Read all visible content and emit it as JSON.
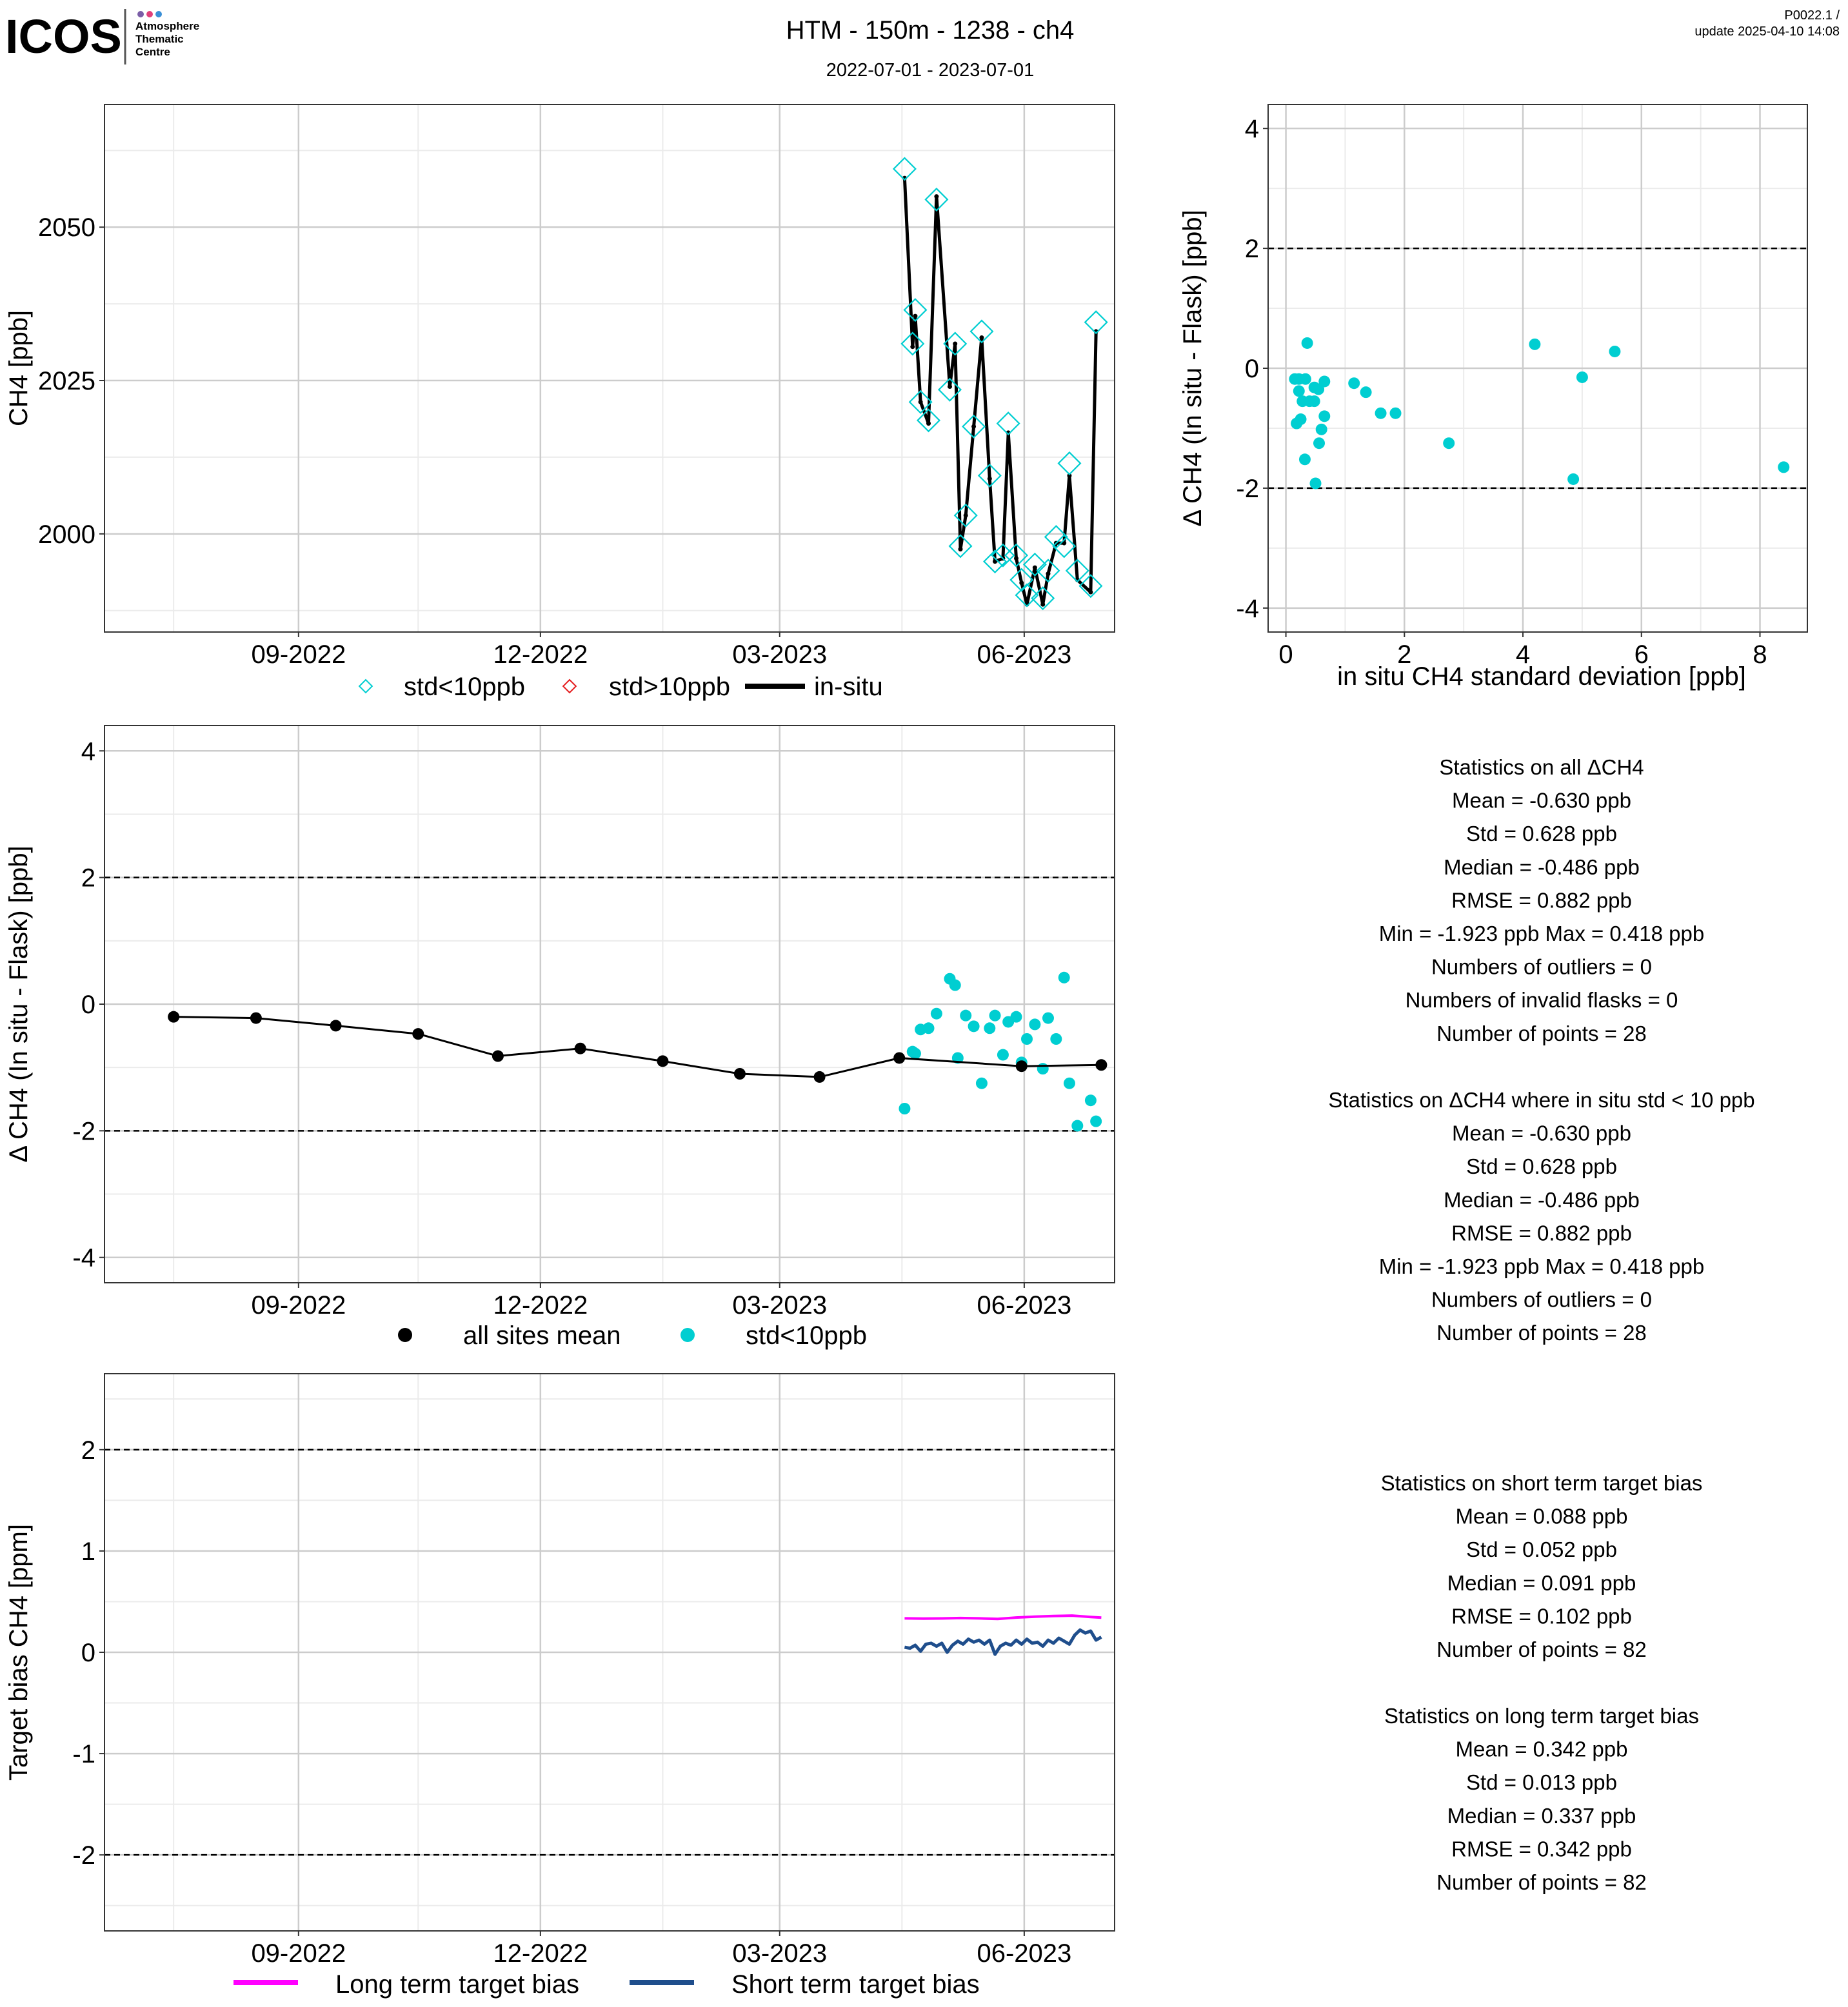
{
  "header": {
    "logo_text": "ICOS",
    "logo_sub": [
      "Atmosphere",
      "Thematic",
      "Centre"
    ],
    "title": "HTM - 150m - 1238 - ch4",
    "subtitle": "2022-07-01 - 2023-07-01",
    "version": "P0022.1 /",
    "update": "update  2025-04-10 14:08"
  },
  "colors": {
    "cyan": "#00CED1",
    "red": "#E41A1C",
    "black": "#000000",
    "magenta": "#FF00FF",
    "navy": "#1F4E8C",
    "grid_major": "#CCCCCC",
    "grid_minor": "#EBEBEB",
    "logo_dots": [
      "#7b5ea7",
      "#e0407a",
      "#3a8fd6"
    ]
  },
  "x_ticks": [
    "09-2022",
    "12-2022",
    "03-2023",
    "06-2023"
  ],
  "chart_data": [
    {
      "id": "timeseries",
      "type": "line",
      "ylabel": "CH4 [ppb]",
      "ylim": [
        1984,
        2070
      ],
      "y_ticks": [
        "2000",
        "2025",
        "2050"
      ],
      "x_ticks": [
        "09-2022",
        "12-2022",
        "03-2023",
        "06-2023"
      ],
      "grid": true,
      "legend": [
        "std<10ppb",
        "std>10ppb",
        "in-situ"
      ],
      "legend_position": "bottom",
      "series": [
        {
          "name": "in-situ",
          "points": [
            [
              "2023-04-17",
              2058.0
            ],
            [
              "2023-04-20",
              2030.5
            ],
            [
              "2023-04-21",
              2035.5
            ],
            [
              "2023-04-23",
              2021.5
            ],
            [
              "2023-04-26",
              2018.0
            ],
            [
              "2023-04-29",
              2055.0
            ],
            [
              "2023-05-04",
              2024.0
            ],
            [
              "2023-05-06",
              2031.0
            ],
            [
              "2023-05-08",
              1997.5
            ],
            [
              "2023-05-10",
              2003.0
            ],
            [
              "2023-05-13",
              2017.5
            ],
            [
              "2023-05-16",
              2032.0
            ],
            [
              "2023-05-19",
              2009.0
            ],
            [
              "2023-05-21",
              1995.5
            ],
            [
              "2023-05-24",
              1996.0
            ],
            [
              "2023-05-26",
              2016.5
            ],
            [
              "2023-05-29",
              1996.0
            ],
            [
              "2023-05-31",
              1992.0
            ],
            [
              "2023-06-02",
              1988.5
            ],
            [
              "2023-06-05",
              1994.5
            ],
            [
              "2023-06-08",
              1988.5
            ],
            [
              "2023-06-10",
              1993.5
            ],
            [
              "2023-06-13",
              1998.5
            ],
            [
              "2023-06-16",
              1998.5
            ],
            [
              "2023-06-18",
              2009.5
            ],
            [
              "2023-06-21",
              1992.5
            ],
            [
              "2023-06-26",
              1990.5
            ],
            [
              "2023-06-28",
              2033.0
            ]
          ]
        },
        {
          "name": "std<10ppb",
          "points": [
            [
              "2023-04-17",
              2059.5
            ],
            [
              "2023-04-20",
              2031.0
            ],
            [
              "2023-04-21",
              2036.5
            ],
            [
              "2023-04-23",
              2021.5
            ],
            [
              "2023-04-26",
              2018.5
            ],
            [
              "2023-04-29",
              2054.5
            ],
            [
              "2023-05-04",
              2023.5
            ],
            [
              "2023-05-06",
              2031.0
            ],
            [
              "2023-05-08",
              1998.0
            ],
            [
              "2023-05-10",
              2003.0
            ],
            [
              "2023-05-13",
              2017.5
            ],
            [
              "2023-05-16",
              2033.0
            ],
            [
              "2023-05-19",
              2009.5
            ],
            [
              "2023-05-21",
              1995.5
            ],
            [
              "2023-05-24",
              1996.5
            ],
            [
              "2023-05-26",
              2018.0
            ],
            [
              "2023-05-29",
              1996.5
            ],
            [
              "2023-05-31",
              1992.5
            ],
            [
              "2023-06-02",
              1990.0
            ],
            [
              "2023-06-05",
              1995.0
            ],
            [
              "2023-06-08",
              1989.5
            ],
            [
              "2023-06-10",
              1994.0
            ],
            [
              "2023-06-13",
              1999.5
            ],
            [
              "2023-06-16",
              1998.0
            ],
            [
              "2023-06-18",
              2011.5
            ],
            [
              "2023-06-21",
              1994.0
            ],
            [
              "2023-06-26",
              1991.5
            ],
            [
              "2023-06-28",
              2034.5
            ]
          ]
        },
        {
          "name": "std>10ppb",
          "points": []
        }
      ]
    },
    {
      "id": "delta_vs_std",
      "type": "scatter",
      "xlabel": "in situ CH4 standard deviation [ppb]",
      "ylabel": "Δ CH4 (In situ - Flask) [ppb]",
      "xlim": [
        -0.3,
        8.8
      ],
      "ylim": [
        -4.4,
        4.4
      ],
      "x_ticks": [
        "0",
        "2",
        "4",
        "6",
        "8"
      ],
      "y_ticks": [
        "4",
        "2",
        "0",
        "-2",
        "-4"
      ],
      "reference_lines": [
        2,
        -2
      ],
      "grid": true,
      "points": [
        [
          0.15,
          -0.18
        ],
        [
          0.22,
          -0.18
        ],
        [
          0.33,
          -0.18
        ],
        [
          0.22,
          -0.38
        ],
        [
          0.48,
          -0.32
        ],
        [
          0.55,
          -0.35
        ],
        [
          0.4,
          -0.55
        ],
        [
          0.28,
          -0.55
        ],
        [
          0.48,
          -0.55
        ],
        [
          0.65,
          -0.22
        ],
        [
          0.36,
          0.42
        ],
        [
          0.25,
          -0.85
        ],
        [
          0.18,
          -0.92
        ],
        [
          0.65,
          -0.8
        ],
        [
          0.6,
          -1.02
        ],
        [
          0.56,
          -1.25
        ],
        [
          0.32,
          -1.52
        ],
        [
          0.5,
          -1.92
        ],
        [
          1.15,
          -0.25
        ],
        [
          1.35,
          -0.4
        ],
        [
          1.6,
          -0.75
        ],
        [
          1.85,
          -0.75
        ],
        [
          2.75,
          -1.25
        ],
        [
          4.2,
          0.4
        ],
        [
          5.55,
          0.28
        ],
        [
          5.0,
          -0.15
        ],
        [
          4.85,
          -1.85
        ],
        [
          8.4,
          -1.65
        ]
      ]
    },
    {
      "id": "delta_timeseries",
      "type": "scatter",
      "ylabel": "Δ CH4 (In situ - Flask) [ppb]",
      "ylim": [
        -4.4,
        4.4
      ],
      "y_ticks": [
        "4",
        "2",
        "0",
        "-2",
        "-4"
      ],
      "x_ticks": [
        "09-2022",
        "12-2022",
        "03-2023",
        "06-2023"
      ],
      "reference_lines": [
        2,
        -2
      ],
      "grid": true,
      "legend": [
        "all sites mean",
        "std<10ppb"
      ],
      "legend_position": "bottom",
      "series": [
        {
          "name": "all sites mean",
          "points": [
            [
              "2022-07-16",
              -0.2
            ],
            [
              "2022-08-16",
              -0.22
            ],
            [
              "2022-09-15",
              -0.34
            ],
            [
              "2022-10-16",
              -0.47
            ],
            [
              "2022-11-15",
              -0.82
            ],
            [
              "2022-12-16",
              -0.7
            ],
            [
              "2023-01-16",
              -0.9
            ],
            [
              "2023-02-14",
              -1.1
            ],
            [
              "2023-03-16",
              -1.15
            ],
            [
              "2023-04-15",
              -0.85
            ],
            [
              "2023-05-31",
              -0.98
            ],
            [
              "2023-06-30",
              -0.96
            ]
          ]
        },
        {
          "name": "std<10ppb",
          "points": [
            [
              "2023-04-17",
              -1.65
            ],
            [
              "2023-04-20",
              -0.75
            ],
            [
              "2023-04-21",
              -0.78
            ],
            [
              "2023-04-23",
              -0.4
            ],
            [
              "2023-04-26",
              -0.38
            ],
            [
              "2023-04-29",
              -0.15
            ],
            [
              "2023-05-04",
              0.4
            ],
            [
              "2023-05-06",
              0.3
            ],
            [
              "2023-05-07",
              -0.85
            ],
            [
              "2023-05-10",
              -0.18
            ],
            [
              "2023-05-13",
              -0.35
            ],
            [
              "2023-05-16",
              -1.25
            ],
            [
              "2023-05-19",
              -0.38
            ],
            [
              "2023-05-21",
              -0.18
            ],
            [
              "2023-05-24",
              -0.8
            ],
            [
              "2023-05-26",
              -0.28
            ],
            [
              "2023-05-29",
              -0.2
            ],
            [
              "2023-05-31",
              -0.92
            ],
            [
              "2023-06-02",
              -0.55
            ],
            [
              "2023-06-05",
              -0.32
            ],
            [
              "2023-06-08",
              -1.02
            ],
            [
              "2023-06-10",
              -0.22
            ],
            [
              "2023-06-13",
              -0.55
            ],
            [
              "2023-06-16",
              0.42
            ],
            [
              "2023-06-18",
              -1.25
            ],
            [
              "2023-06-21",
              -1.92
            ],
            [
              "2023-06-26",
              -1.52
            ],
            [
              "2023-06-28",
              -1.85
            ]
          ]
        }
      ]
    },
    {
      "id": "target_bias",
      "type": "line",
      "ylabel": "Target bias CH4 [ppm]",
      "ylim": [
        -2.75,
        2.75
      ],
      "y_ticks": [
        "2",
        "1",
        "0",
        "-1",
        "-2"
      ],
      "x_ticks": [
        "09-2022",
        "12-2022",
        "03-2023",
        "06-2023"
      ],
      "reference_lines": [
        2,
        -2
      ],
      "grid": true,
      "legend": [
        "Long term target bias",
        "Short term target bias"
      ],
      "legend_position": "bottom",
      "series": [
        {
          "name": "Long term target bias",
          "points": [
            [
              "2023-04-17",
              0.335
            ],
            [
              "2023-04-24",
              0.333
            ],
            [
              "2023-05-01",
              0.334
            ],
            [
              "2023-05-08",
              0.338
            ],
            [
              "2023-05-15",
              0.335
            ],
            [
              "2023-05-22",
              0.33
            ],
            [
              "2023-05-29",
              0.343
            ],
            [
              "2023-06-05",
              0.352
            ],
            [
              "2023-06-12",
              0.358
            ],
            [
              "2023-06-19",
              0.362
            ],
            [
              "2023-06-26",
              0.348
            ],
            [
              "2023-06-30",
              0.342
            ]
          ]
        },
        {
          "name": "Short term target bias",
          "points": [
            [
              "2023-04-17",
              0.05
            ],
            [
              "2023-04-19",
              0.04
            ],
            [
              "2023-04-21",
              0.07
            ],
            [
              "2023-04-23",
              0.01
            ],
            [
              "2023-04-25",
              0.08
            ],
            [
              "2023-04-27",
              0.09
            ],
            [
              "2023-04-29",
              0.06
            ],
            [
              "2023-05-01",
              0.09
            ],
            [
              "2023-05-03",
              0.0
            ],
            [
              "2023-05-05",
              0.07
            ],
            [
              "2023-05-07",
              0.11
            ],
            [
              "2023-05-09",
              0.08
            ],
            [
              "2023-05-11",
              0.13
            ],
            [
              "2023-05-13",
              0.1
            ],
            [
              "2023-05-15",
              0.12
            ],
            [
              "2023-05-17",
              0.08
            ],
            [
              "2023-05-19",
              0.12
            ],
            [
              "2023-05-21",
              -0.02
            ],
            [
              "2023-05-23",
              0.06
            ],
            [
              "2023-05-25",
              0.09
            ],
            [
              "2023-05-27",
              0.07
            ],
            [
              "2023-05-29",
              0.12
            ],
            [
              "2023-05-31",
              0.08
            ],
            [
              "2023-06-02",
              0.13
            ],
            [
              "2023-06-04",
              0.09
            ],
            [
              "2023-06-06",
              0.1
            ],
            [
              "2023-06-08",
              0.06
            ],
            [
              "2023-06-10",
              0.12
            ],
            [
              "2023-06-12",
              0.09
            ],
            [
              "2023-06-14",
              0.14
            ],
            [
              "2023-06-16",
              0.11
            ],
            [
              "2023-06-18",
              0.08
            ],
            [
              "2023-06-20",
              0.17
            ],
            [
              "2023-06-22",
              0.22
            ],
            [
              "2023-06-24",
              0.19
            ],
            [
              "2023-06-26",
              0.21
            ],
            [
              "2023-06-28",
              0.12
            ],
            [
              "2023-06-30",
              0.15
            ]
          ]
        }
      ]
    }
  ],
  "stats": {
    "all": {
      "title": "Statistics on all ΔCH4",
      "lines": [
        "Mean =  -0.630 ppb",
        "Std =  0.628 ppb",
        "Median =  -0.486 ppb",
        "RMSE =  0.882 ppb",
        "Min =  -1.923 ppb Max =  0.418 ppb",
        "Numbers of outliers =  0",
        "Numbers of invalid flasks =  0",
        "Number of points =  28"
      ]
    },
    "std10": {
      "title": "Statistics on ΔCH4 where in situ std < 10 ppb",
      "lines": [
        "Mean =  -0.630 ppb",
        "Std =  0.628 ppb",
        "Median =  -0.486 ppb",
        "RMSE =  0.882 ppb",
        "Min =  -1.923 ppb Max =  0.418 ppb",
        "Numbers of outliers =  0",
        "Number of points =  28"
      ]
    },
    "short": {
      "title": "Statistics on short term target bias",
      "lines": [
        "Mean =  0.088 ppb",
        "Std =  0.052 ppb",
        "Median =  0.091 ppb",
        "RMSE =  0.102 ppb",
        "Number of points =  82"
      ]
    },
    "long": {
      "title": "Statistics on long term target bias",
      "lines": [
        "Mean =  0.342 ppb",
        "Std =  0.013 ppb",
        "Median =  0.337 ppb",
        "RMSE =  0.342 ppb",
        "Number of points =  82"
      ]
    }
  }
}
